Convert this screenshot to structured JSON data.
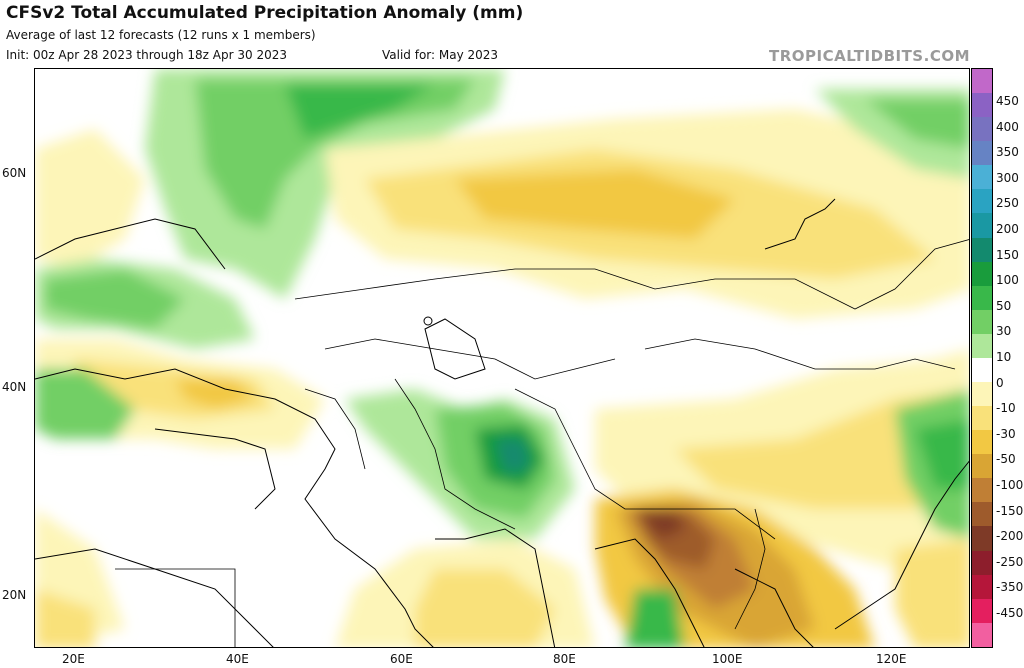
{
  "header": {
    "title": "CFSv2 Total Accumulated Precipitation Anomaly (mm)",
    "subtitle": "Average of last 12 forecasts (12 runs x 1 members)",
    "init": "Init: 00z Apr 28 2023 through 18z Apr 30 2023",
    "valid": "Valid for: May 2023",
    "brand": "TROPICALTIDBITS.COM"
  },
  "map": {
    "lat_labels": [
      "60N",
      "40N",
      "20N"
    ],
    "lon_labels": [
      "20E",
      "40E",
      "60E",
      "80E",
      "100E",
      "120E"
    ]
  },
  "colorbar": {
    "tick_labels": [
      "450",
      "400",
      "350",
      "300",
      "250",
      "200",
      "150",
      "100",
      "50",
      "30",
      "10",
      "0",
      "-10",
      "-30",
      "-50",
      "-100",
      "-150",
      "-200",
      "-250",
      "-350",
      "-450"
    ],
    "colors_top_to_bottom": [
      "#c168c9",
      "#8b62c4",
      "#7872c0",
      "#6683c4",
      "#4bb0d6",
      "#2aa3c2",
      "#1a98a3",
      "#138a6e",
      "#199c3c",
      "#39b84a",
      "#72cf65",
      "#aee79a",
      "#ffffff",
      "#fdf5b8",
      "#f9e17a",
      "#f2c843",
      "#d9a534",
      "#c07f35",
      "#9e5b2c",
      "#7e3a27",
      "#8d1e2c",
      "#b5163a",
      "#e41f5f",
      "#f25fa0"
    ]
  }
}
